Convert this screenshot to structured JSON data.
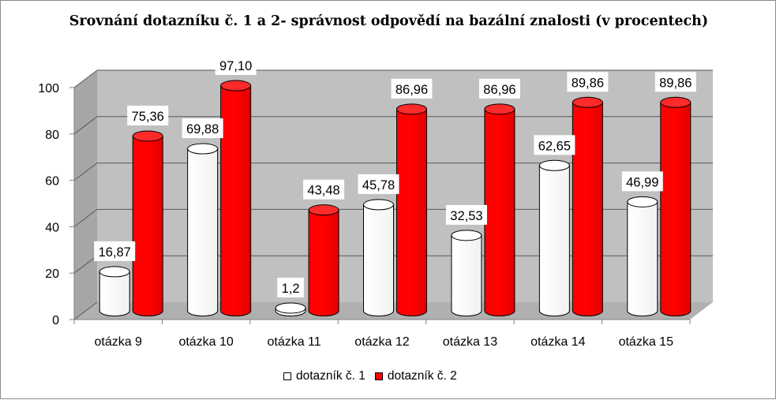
{
  "colors": {
    "series1": "#ffffff",
    "series2": "#ff0000",
    "wall": "#c0c0c0",
    "floor": "#b0b0b0",
    "grid": "#595959"
  },
  "chart_data": {
    "type": "bar",
    "title": "Srovnání dotazníku č. 1 a 2- správnost odpovědí na bazální znalosti (v procentech)",
    "categories": [
      "otázka 9",
      "otázka 10",
      "otázka 11",
      "otázka 12",
      "otázka 13",
      "otázka 14",
      "otázka 15"
    ],
    "series": [
      {
        "name": "dotazník č. 1",
        "values": [
          16.87,
          69.88,
          1.2,
          45.78,
          32.53,
          62.65,
          46.99
        ],
        "labels": [
          "16,87",
          "69,88",
          "1,2",
          "45,78",
          "32,53",
          "62,65",
          "46,99"
        ]
      },
      {
        "name": "dotazník č. 2",
        "values": [
          75.36,
          97.1,
          43.48,
          86.96,
          86.96,
          89.86,
          89.86
        ],
        "labels": [
          "75,36",
          "97,10",
          "43,48",
          "86,96",
          "86,96",
          "89,86",
          "89,86"
        ]
      }
    ],
    "ylim": [
      0,
      100
    ],
    "yticks": [
      0,
      20,
      40,
      60,
      80,
      100
    ],
    "grid": true,
    "legend_position": "bottom",
    "style": "3D cylinder"
  }
}
